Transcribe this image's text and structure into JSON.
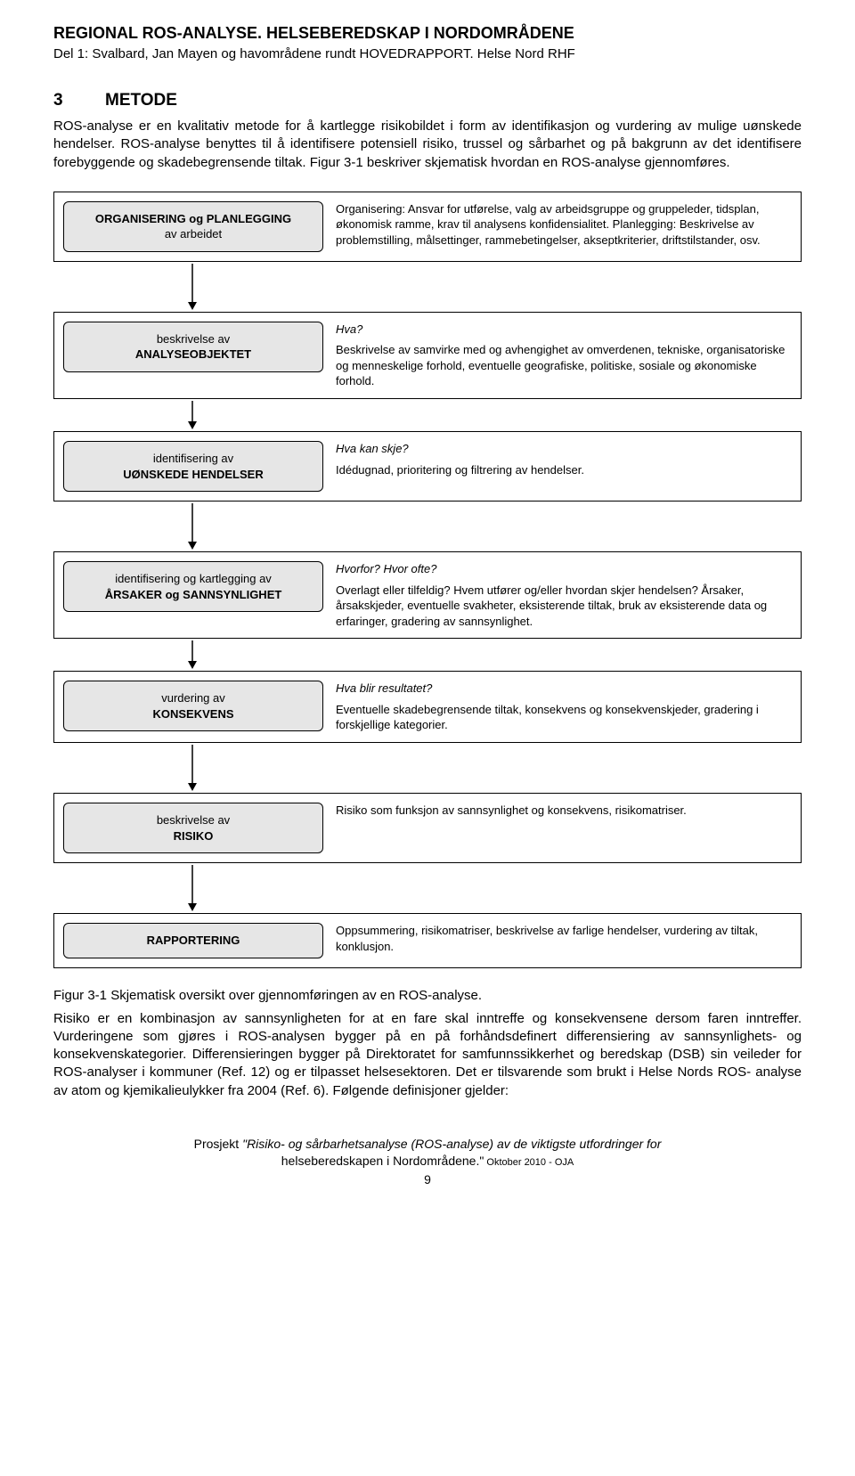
{
  "header": {
    "title": "REGIONAL ROS-ANALYSE. HELSEBEREDSKAP I NORDOMRÅDENE",
    "subtitle": "Del 1: Svalbard, Jan Mayen og havområdene rundt HOVEDRAPPORT. Helse Nord RHF"
  },
  "section": {
    "number": "3",
    "title": "METODE",
    "intro": "ROS-analyse er en kvalitativ metode for å kartlegge risikobildet i form av identifikasjon og vurdering av mulige uønskede hendelser. ROS-analyse benyttes til å identifisere potensiell risiko, trussel og sårbarhet og på bakgrunn av det identifisere forebyggende og skadebegrensende tiltak. Figur 3-1 beskriver skjematisk hvordan en ROS-analyse gjennomføres."
  },
  "flowchart": {
    "box_bg": "#e6e6e6",
    "box_border": "#000000",
    "row_border": "#000000",
    "arrow_color": "#000000",
    "steps": [
      {
        "id": "step-organisering",
        "box": {
          "line1": "ORGANISERING og PLANLEGGING",
          "line2": "av arbeidet",
          "bold1": true,
          "bold2": false
        },
        "desc_html": "Organisering: Ansvar for utførelse, valg av arbeidsgruppe og gruppeleder, tidsplan, økonomisk ramme, krav til analysens konfidensialitet.\nPlanlegging: Beskrivelse av problemstilling, målsettinger, rammebetingelser, akseptkriterier, driftstilstander, osv.",
        "question": null,
        "arrow_after": "tall"
      },
      {
        "id": "step-analyseobjekt",
        "box": {
          "line1": "beskrivelse av",
          "line2": "ANALYSEOBJEKTET",
          "bold1": false,
          "bold2": true
        },
        "question": "Hva?",
        "answer": "Beskrivelse av samvirke med og avhengighet av omverdenen, tekniske, organisatoriske og menneskelige forhold, eventuelle geografiske, politiske, sosiale og økonomiske forhold.",
        "arrow_after": "short"
      },
      {
        "id": "step-uonskede",
        "box": {
          "line1": "identifisering av",
          "line2": "UØNSKEDE HENDELSER",
          "bold1": false,
          "bold2": true
        },
        "question": "Hva kan skje?",
        "answer": "Idédugnad, prioritering og filtrering av hendelser.",
        "arrow_after": "tall"
      },
      {
        "id": "step-aarsaker",
        "box": {
          "line1": "identifisering og kartlegging av",
          "line2": "ÅRSAKER og SANNSYNLIGHET",
          "bold1": false,
          "bold2": true
        },
        "question": "Hvorfor? Hvor ofte?",
        "answer": "Overlagt eller tilfeldig? Hvem utfører og/eller hvordan skjer hendelsen? Årsaker, årsakskjeder, eventuelle svakheter, eksisterende tiltak, bruk av eksisterende data og erfaringer, gradering av sannsynlighet.",
        "arrow_after": "short"
      },
      {
        "id": "step-konsekvens",
        "box": {
          "line1": "vurdering av",
          "line2": "KONSEKVENS",
          "bold1": false,
          "bold2": true
        },
        "question": "Hva blir resultatet?",
        "answer": "Eventuelle skadebegrensende tiltak, konsekvens og konsekvenskjeder, gradering i forskjellige kategorier.",
        "arrow_after": "tall"
      },
      {
        "id": "step-risiko",
        "box": {
          "line1": "beskrivelse av",
          "line2": "RISIKO",
          "bold1": false,
          "bold2": true
        },
        "question": null,
        "desc_html": "Risiko som funksjon av sannsynlighet og konsekvens, risikomatriser.",
        "arrow_after": "tall"
      },
      {
        "id": "step-rapportering",
        "box": {
          "line1": "RAPPORTERING",
          "line2": "",
          "bold1": true,
          "bold2": false
        },
        "question": null,
        "desc_html": "Oppsummering, risikomatriser, beskrivelse av farlige hendelser, vurdering av tiltak, konklusjon.",
        "arrow_after": null
      }
    ]
  },
  "figure_caption": "Figur 3-1 Skjematisk oversikt over gjennomføringen av en ROS-analyse.",
  "outro": "Risiko er en kombinasjon av sannsynligheten for at en fare skal inntreffe og konsekvensene dersom faren inntreffer. Vurderingene som gjøres i ROS-analysen bygger på en på forhåndsdefinert differensiering av sannsynlighets- og konsekvenskategorier. Differensieringen bygger på Direktoratet for samfunnssikkerhet og beredskap (DSB) sin veileder for ROS-analyser i kommuner (Ref. 12) og er tilpasset helsesektoren. Det er tilsvarende som brukt i Helse Nords ROS- analyse av atom og kjemikalieulykker fra 2004 (Ref. 6). Følgende definisjoner gjelder:",
  "footer": {
    "project_prefix": "Prosjekt ",
    "project_italic": "\"Risiko- og sårbarhetsanalyse (ROS-analyse) av de viktigste utfordringer for",
    "project_line2": "helseberedskapen i Nordområdene.\"",
    "project_suffix": " Oktober 2010 - OJA",
    "page": "9"
  }
}
